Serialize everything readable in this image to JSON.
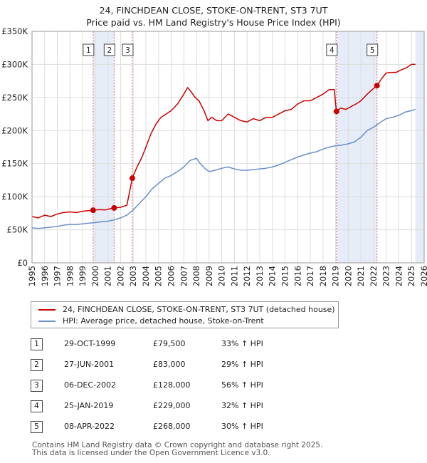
{
  "title_line1": "24, FINCHDEAN CLOSE, STOKE-ON-TRENT, ST3 7UT",
  "title_line2": "Price paid vs. HM Land Registry's House Price Index (HPI)",
  "colors": {
    "property": "#cc0000",
    "hpi": "#6b8fc9",
    "shade": "#e6ecf8",
    "grid": "#dddddd",
    "vline": "#e07070"
  },
  "legend": {
    "property_label": "24, FINCHDEAN CLOSE, STOKE-ON-TRENT, ST3 7UT (detached house)",
    "hpi_label": "HPI: Average price, detached house, Stoke-on-Trent"
  },
  "transactions": [
    {
      "num": "1",
      "date": "29-OCT-1999",
      "price": "£79,500",
      "hpi": "33% ↑ HPI"
    },
    {
      "num": "2",
      "date": "27-JUN-2001",
      "price": "£83,000",
      "hpi": "29% ↑ HPI"
    },
    {
      "num": "3",
      "date": "06-DEC-2002",
      "price": "£128,000",
      "hpi": "56% ↑ HPI"
    },
    {
      "num": "4",
      "date": "25-JAN-2019",
      "price": "£229,000",
      "hpi": "32% ↑ HPI"
    },
    {
      "num": "5",
      "date": "08-APR-2022",
      "price": "£268,000",
      "hpi": "30% ↑ HPI"
    }
  ],
  "footer_line1": "Contains HM Land Registry data © Crown copyright and database right 2025.",
  "footer_line2": "This data is licensed under the Open Government Licence v3.0.",
  "chart_data": {
    "type": "line",
    "title": "Price paid vs. HM Land Registry's House Price Index (HPI)",
    "xlabel": "",
    "ylabel": "",
    "xlim": [
      1995,
      2026
    ],
    "ylim": [
      0,
      350000
    ],
    "x_ticks": [
      1995,
      1996,
      1997,
      1998,
      1999,
      2000,
      2001,
      2002,
      2003,
      2004,
      2005,
      2006,
      2007,
      2008,
      2009,
      2010,
      2011,
      2012,
      2013,
      2014,
      2015,
      2016,
      2017,
      2018,
      2019,
      2020,
      2021,
      2022,
      2023,
      2024,
      2025,
      2026
    ],
    "y_ticks": [
      0,
      50000,
      100000,
      150000,
      200000,
      250000,
      300000,
      350000
    ],
    "y_tick_labels": [
      "£0",
      "£50K",
      "£100K",
      "£150K",
      "£200K",
      "£250K",
      "£300K",
      "£350K"
    ],
    "grid": true,
    "shaded_ranges": [
      [
        1999.83,
        2001.49
      ],
      [
        2002.93,
        2002.93
      ],
      [
        2019.07,
        2022.27
      ],
      [
        2025.3,
        2026
      ]
    ],
    "sales": [
      {
        "label": "1",
        "x": 1999.83,
        "y": 79500
      },
      {
        "label": "2",
        "x": 2001.49,
        "y": 83000
      },
      {
        "label": "3",
        "x": 2002.93,
        "y": 128000
      },
      {
        "label": "4",
        "x": 2019.07,
        "y": 229000
      },
      {
        "label": "5",
        "x": 2022.27,
        "y": 268000
      }
    ],
    "series": [
      {
        "name": "24, FINCHDEAN CLOSE, STOKE-ON-TRENT, ST3 7UT (detached house)",
        "x": [
          1995.0,
          1995.5,
          1996.0,
          1996.5,
          1997.0,
          1997.5,
          1998.0,
          1998.5,
          1999.0,
          1999.5,
          1999.83,
          2000.3,
          2000.8,
          2001.2,
          2001.49,
          2002.0,
          2002.5,
          2002.93,
          2003.3,
          2003.7,
          2004.0,
          2004.4,
          2004.8,
          2005.2,
          2005.6,
          2006.0,
          2006.5,
          2007.0,
          2007.3,
          2007.6,
          2007.9,
          2008.2,
          2008.6,
          2008.9,
          2009.2,
          2009.6,
          2010.0,
          2010.5,
          2011.0,
          2011.5,
          2012.0,
          2012.5,
          2013.0,
          2013.5,
          2014.0,
          2014.5,
          2015.0,
          2015.5,
          2016.0,
          2016.5,
          2017.0,
          2017.5,
          2018.0,
          2018.5,
          2018.9,
          2019.0,
          2019.07,
          2019.4,
          2019.8,
          2020.2,
          2020.6,
          2021.0,
          2021.5,
          2021.9,
          2022.27,
          2022.7,
          2023.0,
          2023.4,
          2023.8,
          2024.2,
          2024.6,
          2025.0,
          2025.3
        ],
        "y": [
          70000,
          68000,
          72000,
          70000,
          74000,
          76000,
          77000,
          76000,
          78000,
          79000,
          79500,
          80500,
          80000,
          82000,
          83000,
          84000,
          87000,
          128000,
          145000,
          160000,
          175000,
          195000,
          210000,
          220000,
          225000,
          230000,
          240000,
          255000,
          265000,
          258000,
          250000,
          245000,
          230000,
          215000,
          220000,
          215000,
          215000,
          225000,
          220000,
          215000,
          213000,
          218000,
          215000,
          220000,
          220000,
          225000,
          230000,
          232000,
          240000,
          245000,
          245000,
          250000,
          255000,
          262000,
          262000,
          240000,
          229000,
          234000,
          232000,
          236000,
          240000,
          245000,
          255000,
          262000,
          268000,
          280000,
          287000,
          288000,
          288000,
          292000,
          295000,
          300000,
          300000
        ]
      },
      {
        "name": "HPI: Average price, detached house, Stoke-on-Trent",
        "x": [
          1995.0,
          1995.5,
          1996.0,
          1996.5,
          1997.0,
          1997.5,
          1998.0,
          1998.5,
          1999.0,
          1999.5,
          2000.0,
          2000.5,
          2001.0,
          2001.5,
          2002.0,
          2002.5,
          2003.0,
          2003.5,
          2004.0,
          2004.5,
          2005.0,
          2005.5,
          2006.0,
          2006.5,
          2007.0,
          2007.5,
          2008.0,
          2008.3,
          2008.7,
          2009.0,
          2009.5,
          2010.0,
          2010.5,
          2011.0,
          2011.5,
          2012.0,
          2012.5,
          2013.0,
          2013.5,
          2014.0,
          2014.5,
          2015.0,
          2015.5,
          2016.0,
          2016.5,
          2017.0,
          2017.5,
          2018.0,
          2018.5,
          2019.0,
          2019.5,
          2020.0,
          2020.5,
          2021.0,
          2021.5,
          2022.0,
          2022.5,
          2023.0,
          2023.5,
          2024.0,
          2024.5,
          2025.0,
          2025.3
        ],
        "y": [
          53000,
          52000,
          53000,
          54000,
          55000,
          57000,
          58000,
          58000,
          59000,
          60000,
          61000,
          62000,
          63000,
          65000,
          68000,
          72000,
          80000,
          90000,
          100000,
          112000,
          120000,
          128000,
          132000,
          138000,
          145000,
          155000,
          158000,
          150000,
          142000,
          138000,
          140000,
          143000,
          145000,
          142000,
          140000,
          140000,
          141000,
          142000,
          143000,
          145000,
          148000,
          152000,
          156000,
          160000,
          163000,
          166000,
          168000,
          172000,
          175000,
          177000,
          178000,
          180000,
          183000,
          190000,
          200000,
          205000,
          212000,
          218000,
          220000,
          223000,
          228000,
          230000,
          232000
        ]
      }
    ]
  }
}
